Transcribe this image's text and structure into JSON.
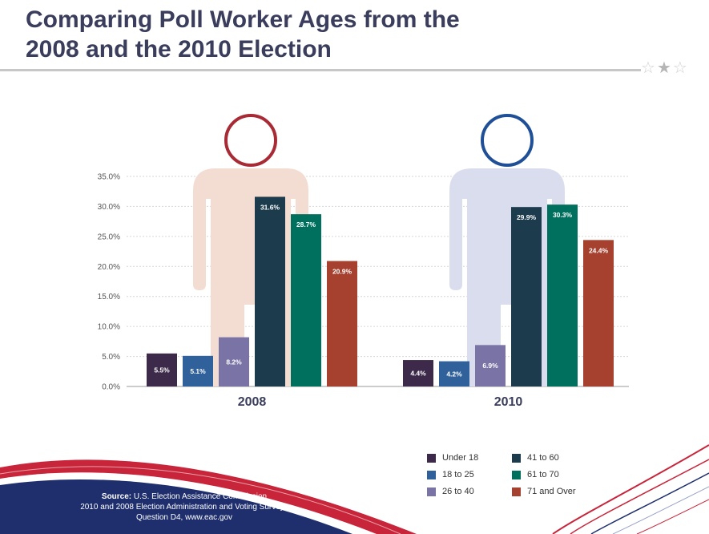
{
  "header": {
    "title_line1": "Comparing Poll Worker Ages from the",
    "title_line2": "2008 and the 2010 Election",
    "stars": "☆★☆"
  },
  "chart_data": {
    "type": "bar",
    "title": "Comparing Poll Worker Ages from the 2008 and the 2010 Election",
    "categories": [
      "2008",
      "2010"
    ],
    "ylim": [
      0,
      35
    ],
    "yticks": [
      "0.0%",
      "5.0%",
      "10.0%",
      "15.0%",
      "20.0%",
      "25.0%",
      "30.0%",
      "35.0%"
    ],
    "grid": true,
    "legend_position": "bottom-right",
    "series": [
      {
        "name": "Under 18",
        "color": "#3d2a4a",
        "values": [
          5.5,
          4.4
        ],
        "labels": [
          "5.5%",
          "4.4%"
        ]
      },
      {
        "name": "18 to 25",
        "color": "#31619a",
        "values": [
          5.1,
          4.2
        ],
        "labels": [
          "5.1%",
          "4.2%"
        ]
      },
      {
        "name": "26 to 40",
        "color": "#7a73a6",
        "values": [
          8.2,
          6.9
        ],
        "labels": [
          "8.2%",
          "6.9%"
        ]
      },
      {
        "name": "41 to 60",
        "color": "#1c3c4e",
        "values": [
          31.6,
          29.9
        ],
        "labels": [
          "31.6%",
          "29.9%"
        ]
      },
      {
        "name": "61 to 70",
        "color": "#00705e",
        "values": [
          28.7,
          30.3
        ],
        "labels": [
          "28.7%",
          "30.3%"
        ]
      },
      {
        "name": "71 and Over",
        "color": "#a6402f",
        "values": [
          20.9,
          24.4
        ],
        "labels": [
          "20.9%",
          "24.4%"
        ]
      }
    ],
    "figures": [
      {
        "category": "2008",
        "head_color": "#a82a35",
        "body_color": "#f3dcd1"
      },
      {
        "category": "2010",
        "head_color": "#1f4f96",
        "body_color": "#dadded"
      }
    ]
  },
  "legend": {
    "items": [
      {
        "label": "Under 18",
        "color": "#3d2a4a"
      },
      {
        "label": "41 to 60",
        "color": "#1c3c4e"
      },
      {
        "label": "18 to 25",
        "color": "#31619a"
      },
      {
        "label": "61 to 70",
        "color": "#00705e"
      },
      {
        "label": "26 to 40",
        "color": "#7a73a6"
      },
      {
        "label": "71 and Over",
        "color": "#a6402f"
      }
    ]
  },
  "footer": {
    "source_label": "Source:",
    "source_line1": "U.S. Election Assistance Commission",
    "source_line2": "2010 and 2008 Election Administration and Voting Surveys",
    "source_line3": "Question D4, www.eac.gov"
  },
  "colors": {
    "title": "#3a3d5c",
    "banner_red": "#c8243a",
    "banner_blue": "#1f2f6e"
  }
}
